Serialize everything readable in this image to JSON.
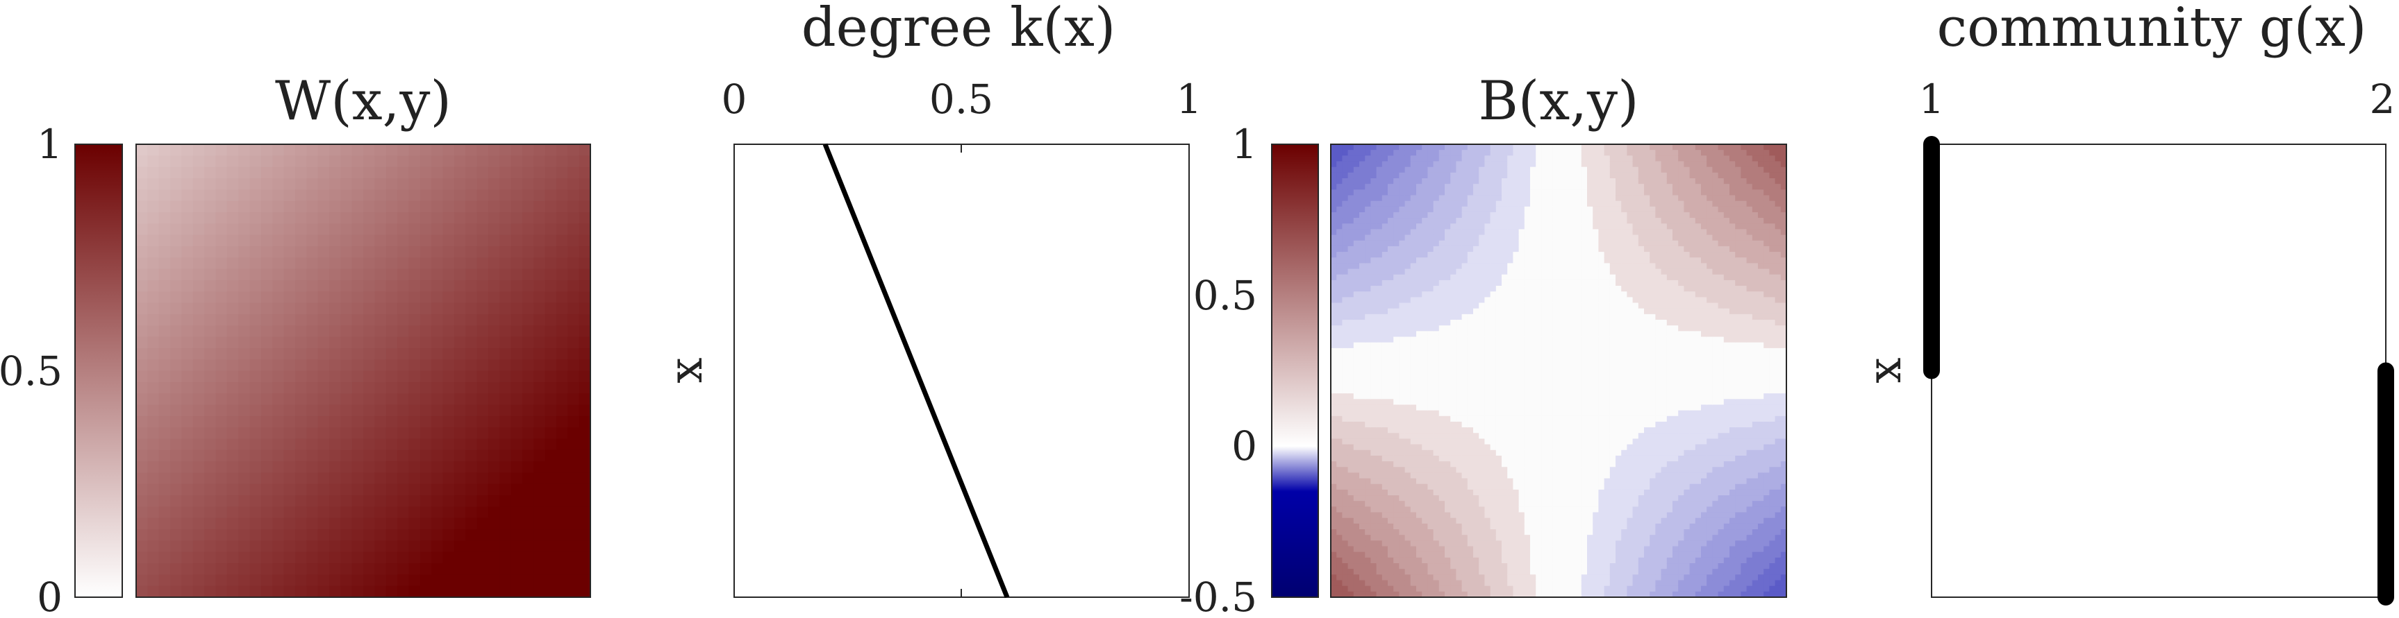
{
  "colors": {
    "w_high": "#6b0000",
    "w_low": "#ffffff",
    "b_pos": "#6b0000",
    "b_neg": "#000070",
    "b_blue": "#0000a8",
    "line": "#000000",
    "frame": "#262626"
  },
  "chart_data": [
    {
      "type": "heatmap",
      "title": "W(x,y)",
      "xlabel": "",
      "ylabel": "",
      "colorbar": {
        "range": [
          0,
          1
        ],
        "ticks": [
          0,
          0.5,
          1
        ],
        "tick_labels": [
          "0",
          "0.5",
          "1"
        ]
      },
      "function": "W(x,y) = (x + y)/2 + 0.2, x and y increasing toward the bottom-right corner",
      "grid": false
    },
    {
      "type": "line",
      "title": "degree k(x)",
      "ylabel": "x",
      "xlabel": "",
      "xlim": [
        0,
        1
      ],
      "ylim": [
        0,
        1
      ],
      "x_ticks": [
        0,
        0.5,
        1
      ],
      "x_tick_labels": [
        "0",
        "0.5",
        "1"
      ],
      "x_axis_location": "top",
      "y_direction": "top-to-bottom",
      "series": [
        {
          "name": "k(x)",
          "x": [
            0.2,
            0.6
          ],
          "y": [
            0,
            1
          ]
        }
      ]
    },
    {
      "type": "heatmap",
      "title": "B(x,y)",
      "xlabel": "",
      "ylabel": "",
      "colorbar": {
        "range": [
          -0.5,
          1
        ],
        "ticks": [
          1,
          0.5,
          0,
          -0.5
        ],
        "tick_labels": [
          "1",
          "0.5",
          "0",
          "-0.5"
        ]
      },
      "function": "B(x,y) = (x - 0.5)(y - 0.5), filled contour levels",
      "contour_levels": 10,
      "grid": false
    },
    {
      "type": "line",
      "title": "community g(x)",
      "ylabel": "x",
      "xlabel": "",
      "xlim": [
        1,
        2
      ],
      "ylim": [
        0,
        1
      ],
      "x_ticks": [
        1,
        2
      ],
      "x_tick_labels": [
        "1",
        "2"
      ],
      "x_axis_location": "top",
      "y_direction": "top-to-bottom",
      "series": [
        {
          "name": "community 1",
          "x": [
            1,
            1
          ],
          "y": [
            0,
            0.5
          ]
        },
        {
          "name": "community 2",
          "x": [
            2,
            2
          ],
          "y": [
            0.5,
            1
          ]
        }
      ]
    }
  ]
}
